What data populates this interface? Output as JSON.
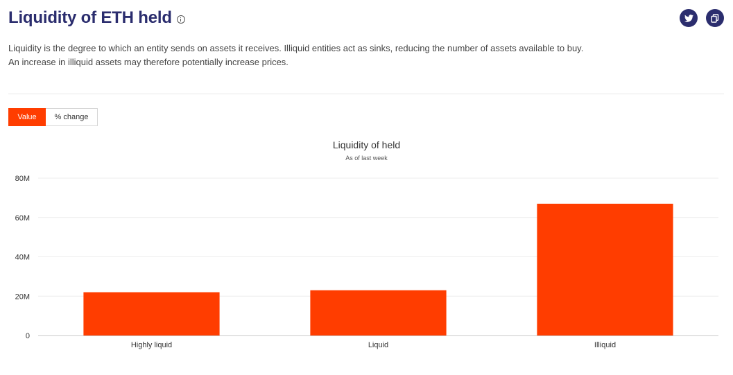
{
  "header": {
    "title": "Liquidity of ETH held",
    "info_icon": "info-icon",
    "share_buttons": [
      {
        "icon": "twitter-icon"
      },
      {
        "icon": "copy-icon"
      }
    ],
    "accent_color": "#2b2d6e"
  },
  "description": {
    "line1": "Liquidity is the degree to which an entity sends on assets it receives. Illiquid entities act as sinks, reducing the number of assets available to buy.",
    "line2": "An increase in illiquid assets may therefore potentially increase prices."
  },
  "toggle": {
    "options": [
      "Value",
      "% change"
    ],
    "selected": "Value",
    "active_color": "#ff3d00"
  },
  "chart_data": {
    "type": "bar",
    "title": "Liquidity of held",
    "subtitle": "As of last week",
    "categories": [
      "Highly liquid",
      "Liquid",
      "Illiquid"
    ],
    "values": [
      22000000,
      23000000,
      67000000
    ],
    "ylim": [
      0,
      80000000
    ],
    "yticks": [
      0,
      20000000,
      40000000,
      60000000,
      80000000
    ],
    "ytick_labels": [
      "0",
      "20M",
      "40M",
      "60M",
      "80M"
    ],
    "bar_color": "#ff3d00",
    "grid": true,
    "legend": "none"
  }
}
